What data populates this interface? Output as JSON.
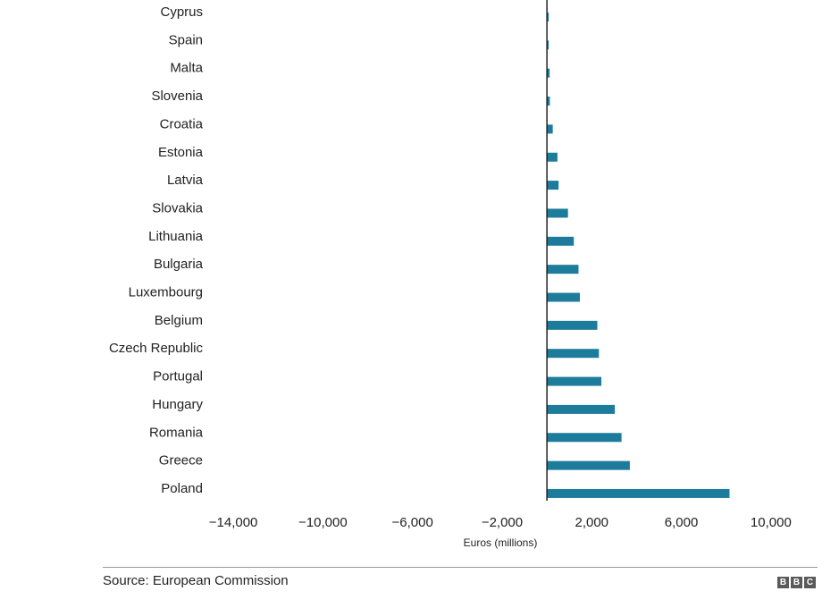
{
  "chart_data": {
    "type": "bar",
    "orientation": "horizontal",
    "categories": [
      "Cyprus",
      "Spain",
      "Malta",
      "Slovenia",
      "Croatia",
      "Estonia",
      "Latvia",
      "Slovakia",
      "Lithuania",
      "Bulgaria",
      "Luxembourg",
      "Belgium",
      "Czech Republic",
      "Portugal",
      "Hungary",
      "Romania",
      "Greece",
      "Poland"
    ],
    "values": [
      40,
      50,
      120,
      130,
      260,
      470,
      520,
      940,
      1200,
      1410,
      1470,
      2250,
      2320,
      2430,
      3030,
      3330,
      3700,
      8150
    ],
    "xlabel": "Euros (millions)",
    "xlim": [
      -15000,
      11800
    ],
    "xticks": [
      -14000,
      -10000,
      -6000,
      -2000,
      2000,
      6000,
      10000
    ],
    "xtick_labels": [
      "−14,000",
      "−10,000",
      "−6,000",
      "−2,000",
      "2,000",
      "6,000",
      "10,000"
    ],
    "grid": false,
    "bar_color": "#1d7c9c"
  },
  "footer": {
    "source": "Source: European Commission",
    "logo_letters": [
      "B",
      "B",
      "C"
    ]
  }
}
